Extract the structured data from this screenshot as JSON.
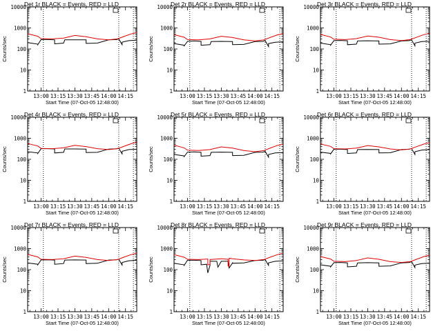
{
  "colors": {
    "events": "#000000",
    "lld": "#e00000",
    "axis": "#000000",
    "background": "#ffffff"
  },
  "chart_data": [
    {
      "type": "line",
      "title": "Det 1r BLACK = Events, RED = LLD",
      "xlabel": "Start Time (07-Oct-05 12:48:00)",
      "ylabel": "Counts/sec",
      "yscale": "log",
      "ylim": [
        1,
        10000
      ],
      "xlim": [
        "12:48",
        "14:25"
      ],
      "x_ticks": [
        "13:00",
        "13:15",
        "13:30",
        "13:45",
        "14:00",
        "14:15"
      ],
      "dotted_x": [
        "13:02",
        "14:09",
        "14:22"
      ],
      "series": [
        {
          "name": "Events",
          "x": [
            "12:48",
            "12:57",
            "12:57",
            "13:00",
            "13:06",
            "13:12",
            "13:12",
            "13:20",
            "13:21",
            "13:30",
            "13:40",
            "13:40",
            "13:50",
            "14:00",
            "14:07",
            "14:08",
            "14:09",
            "14:12",
            "14:12",
            "14:18",
            "14:25"
          ],
          "y": [
            200,
            170,
            160,
            280,
            280,
            270,
            175,
            190,
            270,
            270,
            270,
            185,
            190,
            270,
            280,
            290,
            300,
            160,
            210,
            250,
            260
          ]
        },
        {
          "name": "LLD",
          "x": [
            "12:48",
            "12:57",
            "13:00",
            "13:10",
            "13:20",
            "13:30",
            "13:40",
            "13:50",
            "14:00",
            "14:08",
            "14:14",
            "14:20",
            "14:25"
          ],
          "y": [
            530,
            400,
            310,
            300,
            330,
            440,
            380,
            300,
            270,
            300,
            400,
            520,
            600
          ]
        }
      ]
    },
    {
      "type": "line",
      "title": "Det 2r BLACK = Events, RED = LLD",
      "xlabel": "Start Time (07-Oct-05 12:48:00)",
      "ylabel": "Counts/sec",
      "yscale": "log",
      "ylim": [
        1,
        10000
      ],
      "xlim": [
        "12:48",
        "14:25"
      ],
      "x_ticks": [
        "13:00",
        "13:15",
        "13:30",
        "13:45",
        "14:00",
        "14:15"
      ],
      "dotted_x": [
        "13:02",
        "14:09",
        "14:22"
      ],
      "series": [
        {
          "name": "Events",
          "x": [
            "12:48",
            "12:57",
            "12:57",
            "13:00",
            "13:06",
            "13:12",
            "13:12",
            "13:20",
            "13:21",
            "13:30",
            "13:40",
            "13:40",
            "13:50",
            "14:00",
            "14:07",
            "14:08",
            "14:09",
            "14:12",
            "14:12",
            "14:18",
            "14:25"
          ],
          "y": [
            180,
            150,
            140,
            230,
            240,
            230,
            150,
            160,
            225,
            230,
            225,
            160,
            165,
            225,
            230,
            240,
            250,
            130,
            180,
            210,
            220
          ]
        },
        {
          "name": "LLD",
          "x": [
            "12:48",
            "12:57",
            "13:00",
            "13:10",
            "13:20",
            "13:30",
            "13:40",
            "13:50",
            "14:00",
            "14:08",
            "14:14",
            "14:20",
            "14:25"
          ],
          "y": [
            480,
            360,
            280,
            270,
            300,
            400,
            350,
            270,
            240,
            270,
            360,
            470,
            540
          ]
        }
      ]
    },
    {
      "type": "line",
      "title": "Det 3r BLACK = Events, RED = LLD",
      "xlabel": "Start Time (07-Oct-05 12:48:00)",
      "ylabel": "Counts/sec",
      "yscale": "log",
      "ylim": [
        1,
        10000
      ],
      "xlim": [
        "12:48",
        "14:25"
      ],
      "x_ticks": [
        "13:00",
        "13:15",
        "13:30",
        "13:45",
        "14:00",
        "14:15"
      ],
      "dotted_x": [
        "13:02",
        "14:09",
        "14:22"
      ],
      "series": [
        {
          "name": "Events",
          "x": [
            "12:48",
            "12:57",
            "12:57",
            "13:00",
            "13:06",
            "13:12",
            "13:12",
            "13:20",
            "13:21",
            "13:30",
            "13:40",
            "13:40",
            "13:50",
            "14:00",
            "14:07",
            "14:08",
            "14:09",
            "14:12",
            "14:12",
            "14:18",
            "14:25"
          ],
          "y": [
            190,
            160,
            150,
            250,
            255,
            245,
            160,
            170,
            240,
            245,
            240,
            170,
            175,
            240,
            250,
            260,
            270,
            140,
            190,
            225,
            235
          ]
        },
        {
          "name": "LLD",
          "x": [
            "12:48",
            "12:57",
            "13:00",
            "13:10",
            "13:20",
            "13:30",
            "13:40",
            "13:50",
            "14:00",
            "14:08",
            "14:14",
            "14:20",
            "14:25"
          ],
          "y": [
            490,
            370,
            290,
            280,
            310,
            410,
            360,
            280,
            250,
            280,
            370,
            480,
            560
          ]
        }
      ]
    },
    {
      "type": "line",
      "title": "Det 4r BLACK = Events, RED = LLD",
      "xlabel": "Start Time (07-Oct-05 12:48:00)",
      "ylabel": "Counts/sec",
      "yscale": "log",
      "ylim": [
        1,
        10000
      ],
      "xlim": [
        "12:48",
        "14:25"
      ],
      "x_ticks": [
        "13:00",
        "13:15",
        "13:30",
        "13:45",
        "14:00",
        "14:15"
      ],
      "dotted_x": [
        "13:02",
        "14:09",
        "14:22"
      ],
      "series": [
        {
          "name": "Events",
          "x": [
            "12:48",
            "12:57",
            "12:57",
            "13:00",
            "13:06",
            "13:12",
            "13:12",
            "13:20",
            "13:21",
            "13:30",
            "13:40",
            "13:40",
            "13:50",
            "14:00",
            "14:07",
            "14:08",
            "14:09",
            "14:12",
            "14:12",
            "14:18",
            "14:25"
          ],
          "y": [
            230,
            200,
            190,
            320,
            320,
            310,
            200,
            215,
            310,
            310,
            305,
            210,
            215,
            305,
            315,
            330,
            340,
            180,
            240,
            290,
            300
          ]
        },
        {
          "name": "LLD",
          "x": [
            "12:48",
            "12:57",
            "13:00",
            "13:10",
            "13:20",
            "13:30",
            "13:40",
            "13:50",
            "14:00",
            "14:08",
            "14:14",
            "14:20",
            "14:25"
          ],
          "y": [
            560,
            430,
            330,
            320,
            350,
            460,
            400,
            320,
            290,
            320,
            420,
            550,
            650
          ]
        }
      ]
    },
    {
      "type": "line",
      "title": "Det 5r BLACK = Events, RED = LLD",
      "xlabel": "Start Time (07-Oct-05 12:48:00)",
      "ylabel": "Counts/sec",
      "yscale": "log",
      "ylim": [
        1,
        10000
      ],
      "xlim": [
        "12:48",
        "14:25"
      ],
      "x_ticks": [
        "13:00",
        "13:15",
        "13:30",
        "13:45",
        "14:00",
        "14:15"
      ],
      "dotted_x": [
        "13:02",
        "14:09",
        "14:22"
      ],
      "series": [
        {
          "name": "Events",
          "x": [
            "12:48",
            "12:57",
            "12:57",
            "13:00",
            "13:06",
            "13:12",
            "13:12",
            "13:20",
            "13:21",
            "13:30",
            "13:40",
            "13:40",
            "13:50",
            "14:00",
            "14:07",
            "14:08",
            "14:09",
            "14:12",
            "14:12",
            "14:18",
            "14:25"
          ],
          "y": [
            170,
            145,
            135,
            220,
            225,
            215,
            140,
            150,
            215,
            220,
            215,
            150,
            155,
            215,
            220,
            230,
            240,
            125,
            170,
            200,
            210
          ]
        },
        {
          "name": "LLD",
          "x": [
            "12:48",
            "12:57",
            "13:00",
            "13:10",
            "13:20",
            "13:30",
            "13:40",
            "13:50",
            "14:00",
            "14:08",
            "14:14",
            "14:20",
            "14:25"
          ],
          "y": [
            470,
            350,
            270,
            260,
            290,
            390,
            340,
            260,
            230,
            260,
            350,
            460,
            520
          ]
        }
      ]
    },
    {
      "type": "line",
      "title": "Det 6r BLACK = Events, RED = LLD",
      "xlabel": "Start Time (07-Oct-05 12:48:00)",
      "ylabel": "Counts/sec",
      "yscale": "log",
      "ylim": [
        1,
        10000
      ],
      "xlim": [
        "12:48",
        "14:25"
      ],
      "x_ticks": [
        "13:00",
        "13:15",
        "13:30",
        "13:45",
        "14:00",
        "14:15"
      ],
      "dotted_x": [
        "13:02",
        "14:09",
        "14:22"
      ],
      "series": [
        {
          "name": "Events",
          "x": [
            "12:48",
            "12:57",
            "12:57",
            "13:00",
            "13:06",
            "13:12",
            "13:12",
            "13:20",
            "13:21",
            "13:30",
            "13:40",
            "13:40",
            "13:50",
            "14:00",
            "14:07",
            "14:08",
            "14:09",
            "14:12",
            "14:12",
            "14:18",
            "14:25"
          ],
          "y": [
            220,
            190,
            180,
            300,
            300,
            290,
            190,
            200,
            290,
            295,
            290,
            200,
            205,
            290,
            300,
            315,
            325,
            170,
            230,
            275,
            290
          ]
        },
        {
          "name": "LLD",
          "x": [
            "12:48",
            "12:57",
            "13:00",
            "13:10",
            "13:20",
            "13:30",
            "13:40",
            "13:50",
            "14:00",
            "14:08",
            "14:14",
            "14:20",
            "14:25"
          ],
          "y": [
            540,
            410,
            320,
            310,
            340,
            450,
            390,
            310,
            280,
            310,
            410,
            530,
            620
          ]
        }
      ]
    },
    {
      "type": "line",
      "title": "Det 7r BLACK = Events, RED = LLD",
      "xlabel": "Start Time (07-Oct-05 12:48:00)",
      "ylabel": "Counts/sec",
      "yscale": "log",
      "ylim": [
        1,
        10000
      ],
      "xlim": [
        "12:48",
        "14:25"
      ],
      "x_ticks": [
        "13:00",
        "13:15",
        "13:30",
        "13:45",
        "14:00",
        "14:15"
      ],
      "dotted_x": [
        "13:02",
        "14:09",
        "14:22"
      ],
      "series": [
        {
          "name": "Events",
          "x": [
            "12:48",
            "12:57",
            "12:57",
            "13:00",
            "13:06",
            "13:12",
            "13:12",
            "13:20",
            "13:21",
            "13:30",
            "13:40",
            "13:40",
            "13:50",
            "14:00",
            "14:07",
            "14:08",
            "14:09",
            "14:12",
            "14:12",
            "14:18",
            "14:25"
          ],
          "y": [
            210,
            180,
            170,
            290,
            295,
            285,
            180,
            195,
            285,
            290,
            285,
            195,
            200,
            285,
            295,
            305,
            315,
            165,
            220,
            265,
            280
          ]
        },
        {
          "name": "LLD",
          "x": [
            "12:48",
            "12:57",
            "13:00",
            "13:10",
            "13:20",
            "13:30",
            "13:40",
            "13:50",
            "14:00",
            "14:08",
            "14:14",
            "14:20",
            "14:25"
          ],
          "y": [
            530,
            400,
            310,
            300,
            330,
            440,
            380,
            300,
            270,
            300,
            400,
            520,
            600
          ]
        }
      ]
    },
    {
      "type": "line",
      "title": "Det 8r BLACK = Events, RED = LLD",
      "xlabel": "Start Time (07-Oct-05 12:48:00)",
      "ylabel": "Counts/sec",
      "yscale": "log",
      "ylim": [
        1,
        10000
      ],
      "xlim": [
        "12:48",
        "14:25"
      ],
      "x_ticks": [
        "13:00",
        "13:15",
        "13:30",
        "13:45",
        "14:00",
        "14:15"
      ],
      "dotted_x": [
        "13:02",
        "14:09",
        "14:22"
      ],
      "series": [
        {
          "name": "Events",
          "x": [
            "12:48",
            "12:57",
            "12:57",
            "13:00",
            "13:06",
            "13:12",
            "13:12",
            "13:17",
            "13:18",
            "13:20",
            "13:20",
            "13:26",
            "13:27",
            "13:30",
            "13:36",
            "13:37",
            "13:40",
            "13:40",
            "13:50",
            "14:00",
            "14:07",
            "14:08",
            "14:09",
            "14:12",
            "14:12",
            "14:18",
            "14:25"
          ],
          "y": [
            200,
            170,
            160,
            280,
            280,
            270,
            170,
            180,
            70,
            160,
            250,
            250,
            130,
            250,
            250,
            120,
            210,
            200,
            210,
            270,
            280,
            290,
            300,
            160,
            210,
            250,
            260
          ]
        },
        {
          "name": "LLD",
          "x": [
            "12:48",
            "12:57",
            "13:00",
            "13:10",
            "13:18",
            "13:18",
            "13:20",
            "13:20",
            "13:30",
            "13:36",
            "13:36",
            "13:37",
            "13:37",
            "13:40",
            "13:50",
            "14:00",
            "14:08",
            "14:14",
            "14:20",
            "14:25"
          ],
          "y": [
            520,
            390,
            310,
            300,
            320,
            170,
            175,
            300,
            330,
            310,
            150,
            140,
            350,
            330,
            290,
            270,
            300,
            400,
            520,
            600
          ]
        }
      ]
    },
    {
      "type": "line",
      "title": "Det 9r BLACK = Events, RED = LLD",
      "xlabel": "Start Time (07-Oct-05 12:48:00)",
      "ylabel": "Counts/sec",
      "yscale": "log",
      "ylim": [
        1,
        10000
      ],
      "xlim": [
        "12:48",
        "14:25"
      ],
      "x_ticks": [
        "13:00",
        "13:15",
        "13:30",
        "13:45",
        "14:00",
        "14:15"
      ],
      "dotted_x": [
        "13:02",
        "14:09",
        "14:22"
      ],
      "series": [
        {
          "name": "Events",
          "x": [
            "12:48",
            "12:57",
            "12:57",
            "13:00",
            "13:06",
            "13:12",
            "13:12",
            "13:20",
            "13:21",
            "13:30",
            "13:40",
            "13:40",
            "13:50",
            "14:00",
            "14:07",
            "14:08",
            "14:09",
            "14:12",
            "14:12",
            "14:18",
            "14:25"
          ],
          "y": [
            170,
            145,
            135,
            215,
            220,
            210,
            135,
            145,
            210,
            215,
            210,
            145,
            150,
            210,
            220,
            230,
            240,
            125,
            165,
            195,
            205
          ]
        },
        {
          "name": "LLD",
          "x": [
            "12:48",
            "12:57",
            "13:00",
            "13:10",
            "13:20",
            "13:30",
            "13:40",
            "13:50",
            "14:00",
            "14:08",
            "14:14",
            "14:20",
            "14:25"
          ],
          "y": [
            420,
            320,
            250,
            240,
            270,
            360,
            310,
            240,
            220,
            240,
            320,
            420,
            480
          ]
        }
      ]
    }
  ],
  "y_tick_labels": [
    "1",
    "10",
    "100",
    "1000",
    "10000"
  ]
}
